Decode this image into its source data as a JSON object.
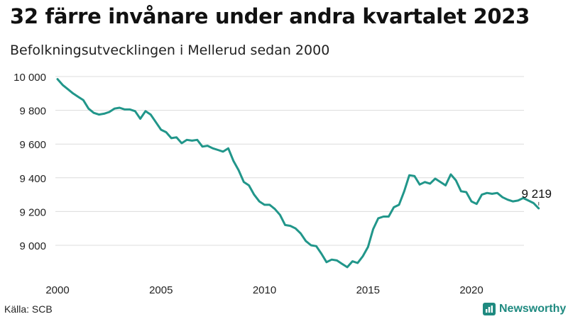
{
  "header": {
    "title": "32 färre invånare under andra kvartalet 2023",
    "subtitle": "Befolkningsutvecklingen i Mellerud sedan 2000"
  },
  "footer": {
    "source": "Källa: SCB",
    "brand": "Newsworthy",
    "brand_icon": "bar-chart-logo-icon"
  },
  "colors": {
    "line": "#21968a",
    "grid": "#dcdcdc",
    "brand": "#1f8a80"
  },
  "chart_data": {
    "type": "line",
    "title": "32 färre invånare under andra kvartalet 2023",
    "subtitle": "Befolkningsutvecklingen i Mellerud sedan 2000",
    "xlabel": "",
    "ylabel": "",
    "xlim": [
      2000,
      2024
    ],
    "ylim": [
      8850,
      10030
    ],
    "grid": "horizontal",
    "legend": "none",
    "y_ticks": [
      {
        "value": 9000,
        "label": "9 000"
      },
      {
        "value": 9200,
        "label": "9 200"
      },
      {
        "value": 9400,
        "label": "9 400"
      },
      {
        "value": 9600,
        "label": "9 600"
      },
      {
        "value": 9800,
        "label": "9 800"
      },
      {
        "value": 10000,
        "label": "10 000"
      }
    ],
    "x_ticks": [
      {
        "value": 2000,
        "label": "2000"
      },
      {
        "value": 2005,
        "label": "2005"
      },
      {
        "value": 2010,
        "label": "2010"
      },
      {
        "value": 2015,
        "label": "2015"
      },
      {
        "value": 2020,
        "label": "2020"
      }
    ],
    "annotation": {
      "x": 2023.25,
      "y": 9219,
      "label": "9 219"
    },
    "x": [
      2000.0,
      2000.25,
      2000.5,
      2000.75,
      2001.0,
      2001.25,
      2001.5,
      2001.75,
      2002.0,
      2002.25,
      2002.5,
      2002.75,
      2003.0,
      2003.25,
      2003.5,
      2003.75,
      2004.0,
      2004.25,
      2004.5,
      2004.75,
      2005.0,
      2005.25,
      2005.5,
      2005.75,
      2006.0,
      2006.25,
      2006.5,
      2006.75,
      2007.0,
      2007.25,
      2007.5,
      2007.75,
      2008.0,
      2008.25,
      2008.5,
      2008.75,
      2009.0,
      2009.25,
      2009.5,
      2009.75,
      2010.0,
      2010.25,
      2010.5,
      2010.75,
      2011.0,
      2011.25,
      2011.5,
      2011.75,
      2012.0,
      2012.25,
      2012.5,
      2012.75,
      2013.0,
      2013.25,
      2013.5,
      2013.75,
      2014.0,
      2014.25,
      2014.5,
      2014.75,
      2015.0,
      2015.25,
      2015.5,
      2015.75,
      2016.0,
      2016.25,
      2016.5,
      2016.75,
      2017.0,
      2017.25,
      2017.5,
      2017.75,
      2018.0,
      2018.25,
      2018.5,
      2018.75,
      2019.0,
      2019.25,
      2019.5,
      2019.75,
      2020.0,
      2020.25,
      2020.5,
      2020.75,
      2021.0,
      2021.25,
      2021.5,
      2021.75,
      2022.0,
      2022.25,
      2022.5,
      2022.75,
      2023.0,
      2023.25
    ],
    "series": [
      {
        "values": [
          9985,
          9950,
          9925,
          9900,
          9880,
          9860,
          9810,
          9785,
          9775,
          9780,
          9790,
          9810,
          9815,
          9805,
          9805,
          9795,
          9750,
          9795,
          9775,
          9730,
          9685,
          9670,
          9635,
          9640,
          9605,
          9625,
          9620,
          9625,
          9585,
          9590,
          9575,
          9565,
          9555,
          9575,
          9500,
          9445,
          9375,
          9355,
          9300,
          9260,
          9240,
          9240,
          9215,
          9180,
          9120,
          9115,
          9100,
          9070,
          9025,
          9000,
          8995,
          8950,
          8900,
          8915,
          8910,
          8890,
          8870,
          8905,
          8895,
          8935,
          8990,
          9095,
          9160,
          9170,
          9170,
          9225,
          9240,
          9320,
          9415,
          9410,
          9360,
          9375,
          9365,
          9395,
          9375,
          9355,
          9420,
          9385,
          9320,
          9315,
          9260,
          9245,
          9300,
          9310,
          9305,
          9310,
          9285,
          9270,
          9260,
          9265,
          9280,
          9265,
          9250,
          9219
        ]
      }
    ]
  }
}
